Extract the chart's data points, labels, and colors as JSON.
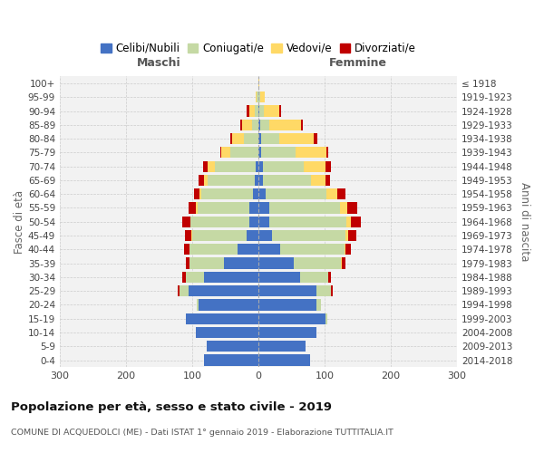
{
  "age_groups": [
    "0-4",
    "5-9",
    "10-14",
    "15-19",
    "20-24",
    "25-29",
    "30-34",
    "35-39",
    "40-44",
    "45-49",
    "50-54",
    "55-59",
    "60-64",
    "65-69",
    "70-74",
    "75-79",
    "80-84",
    "85-89",
    "90-94",
    "95-99",
    "100+"
  ],
  "birth_years": [
    "2014-2018",
    "2009-2013",
    "2004-2008",
    "1999-2003",
    "1994-1998",
    "1989-1993",
    "1984-1988",
    "1979-1983",
    "1974-1978",
    "1969-1973",
    "1964-1968",
    "1959-1963",
    "1954-1958",
    "1949-1953",
    "1944-1948",
    "1939-1943",
    "1934-1938",
    "1929-1933",
    "1924-1928",
    "1919-1923",
    "≤ 1918"
  ],
  "male_celibe": [
    82,
    78,
    95,
    110,
    90,
    105,
    82,
    52,
    32,
    18,
    14,
    14,
    8,
    5,
    4,
    0,
    0,
    0,
    0,
    0,
    0
  ],
  "male_coniugato": [
    0,
    0,
    0,
    0,
    3,
    14,
    28,
    52,
    72,
    82,
    88,
    78,
    78,
    72,
    62,
    42,
    22,
    10,
    5,
    2,
    0
  ],
  "male_vedovo": [
    0,
    0,
    0,
    0,
    0,
    0,
    0,
    0,
    0,
    1,
    1,
    2,
    3,
    5,
    10,
    14,
    18,
    14,
    8,
    2,
    0
  ],
  "male_divorziato": [
    0,
    0,
    0,
    0,
    0,
    3,
    5,
    5,
    8,
    10,
    12,
    12,
    8,
    8,
    8,
    2,
    2,
    3,
    5,
    0,
    0
  ],
  "female_celibe": [
    78,
    72,
    88,
    102,
    88,
    88,
    63,
    53,
    33,
    20,
    16,
    16,
    11,
    7,
    7,
    4,
    4,
    3,
    2,
    0,
    0
  ],
  "female_coniugato": [
    0,
    0,
    0,
    2,
    7,
    22,
    42,
    72,
    97,
    112,
    117,
    107,
    92,
    72,
    62,
    52,
    28,
    14,
    7,
    3,
    0
  ],
  "female_vedovo": [
    0,
    0,
    0,
    0,
    0,
    0,
    0,
    1,
    2,
    4,
    7,
    11,
    16,
    22,
    33,
    47,
    52,
    47,
    23,
    7,
    2
  ],
  "female_divorziato": [
    0,
    0,
    0,
    0,
    0,
    3,
    5,
    5,
    8,
    12,
    15,
    15,
    12,
    8,
    8,
    3,
    5,
    3,
    3,
    0,
    0
  ],
  "colors": {
    "celibe": "#4472C4",
    "coniugato": "#C5D9A4",
    "vedovo": "#FFD966",
    "divorziato": "#C00000"
  },
  "title": "Popolazione per età, sesso e stato civile - 2019",
  "subtitle": "COMUNE DI ACQUEDOLCI (ME) - Dati ISTAT 1° gennaio 2019 - Elaborazione TUTTITALIA.IT",
  "xlabel_left": "Maschi",
  "xlabel_right": "Femmine",
  "ylabel_left": "Fasce di età",
  "ylabel_right": "Anni di nascita",
  "xlim": 300,
  "legend_labels": [
    "Celibi/Nubili",
    "Coniugati/e",
    "Vedovi/e",
    "Divorziati/e"
  ],
  "bg_color": "#FFFFFF",
  "plot_bg": "#F2F2F2",
  "grid_color": "#CCCCCC"
}
